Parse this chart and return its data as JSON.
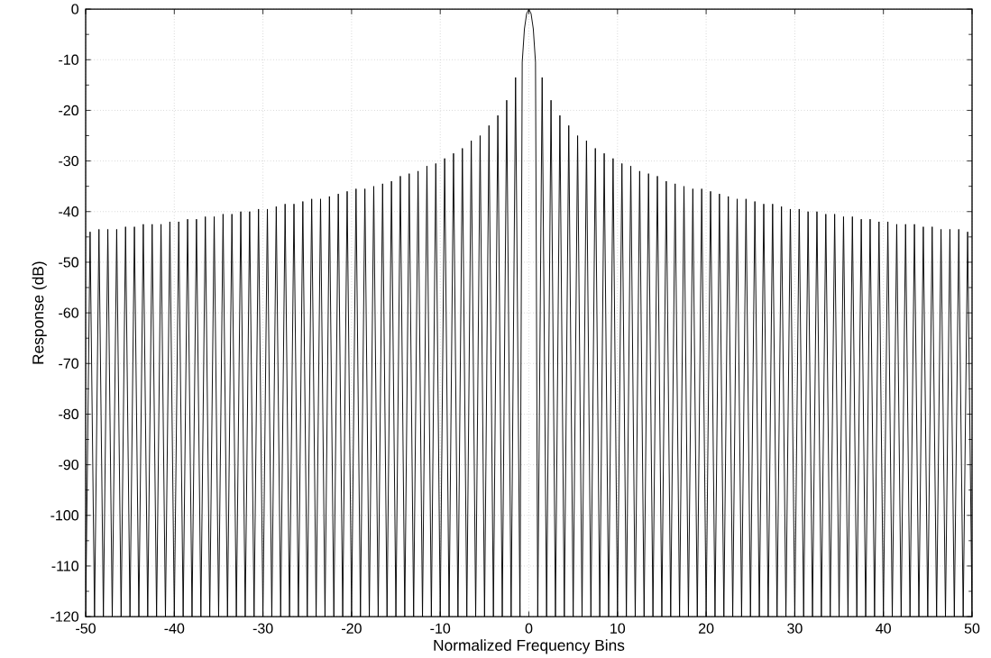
{
  "chart_data": {
    "type": "line",
    "xlabel": "Normalized Frequency Bins",
    "ylabel": "Response (dB)",
    "xlim": [
      -50,
      50
    ],
    "ylim": [
      -120,
      0
    ],
    "xticks": [
      -50,
      -40,
      -30,
      -20,
      -10,
      0,
      10,
      20,
      30,
      40,
      50
    ],
    "yticks": [
      -120,
      -110,
      -100,
      -90,
      -80,
      -70,
      -60,
      -50,
      -40,
      -30,
      -20,
      -10,
      0
    ],
    "grid": true,
    "marker": "none",
    "line_style": "solid",
    "series": [
      {
        "color": "#000000",
        "x": [
          -50,
          -49.5,
          -49,
          -48.5,
          -48,
          -47.5,
          -47,
          -46.5,
          -46,
          -45.5,
          -45,
          -44.5,
          -44,
          -43.5,
          -43,
          -42.5,
          -42,
          -41.5,
          -41,
          -40.5,
          -40,
          -39.5,
          -39,
          -38.5,
          -38,
          -37.5,
          -37,
          -36.5,
          -36,
          -35.5,
          -35,
          -34.5,
          -34,
          -33.5,
          -33,
          -32.5,
          -32,
          -31.5,
          -31,
          -30.5,
          -30,
          -29.5,
          -29,
          -28.5,
          -28,
          -27.5,
          -27,
          -26.5,
          -26,
          -25.5,
          -25,
          -24.5,
          -24,
          -23.5,
          -23,
          -22.5,
          -22,
          -21.5,
          -21,
          -20.5,
          -20,
          -19.5,
          -19,
          -18.5,
          -18,
          -17.5,
          -17,
          -16.5,
          -16,
          -15.5,
          -15,
          -14.5,
          -14,
          -13.5,
          -13,
          -12.5,
          -12,
          -11.5,
          -11,
          -10.5,
          -10,
          -9.5,
          -9,
          -8.5,
          -8,
          -7.5,
          -7,
          -6.5,
          -6,
          -5.5,
          -5,
          -4.5,
          -4,
          -3.5,
          -3,
          -2.5,
          -2,
          -1.5,
          -1,
          -0.75,
          -0.5,
          -0.25,
          0,
          0.25,
          0.5,
          0.75,
          1,
          1.5,
          2,
          2.5,
          3,
          3.5,
          4,
          4.5,
          5,
          5.5,
          6,
          6.5,
          7,
          7.5,
          8,
          8.5,
          9,
          9.5,
          10,
          10.5,
          11,
          11.5,
          12,
          12.5,
          13,
          13.5,
          14,
          14.5,
          15,
          15.5,
          16,
          16.5,
          17,
          17.5,
          18,
          18.5,
          19,
          19.5,
          20,
          20.5,
          21,
          21.5,
          22,
          22.5,
          23,
          23.5,
          24,
          24.5,
          25,
          25.5,
          26,
          26.5,
          27,
          27.5,
          28,
          28.5,
          29,
          29.5,
          30,
          30.5,
          31,
          31.5,
          32,
          32.5,
          33,
          33.5,
          34,
          34.5,
          35,
          35.5,
          36,
          36.5,
          37,
          37.5,
          38,
          38.5,
          39,
          39.5,
          40,
          40.5,
          41,
          41.5,
          42,
          42.5,
          43,
          43.5,
          44,
          44.5,
          45,
          45.5,
          46,
          46.5,
          47,
          47.5,
          48,
          48.5,
          49,
          49.5,
          50
        ],
        "values": [
          -120,
          -44,
          -120,
          -43.5,
          -120,
          -43.5,
          -120,
          -43.5,
          -120,
          -43,
          -120,
          -43,
          -120,
          -42.5,
          -120,
          -42.5,
          -120,
          -42.5,
          -120,
          -42,
          -120,
          -42,
          -120,
          -41.5,
          -120,
          -41.5,
          -120,
          -41,
          -120,
          -41,
          -120,
          -40.5,
          -120,
          -40.5,
          -120,
          -40,
          -120,
          -40,
          -120,
          -39.5,
          -120,
          -39.5,
          -120,
          -39,
          -120,
          -38.5,
          -120,
          -38.5,
          -120,
          -38,
          -120,
          -37.5,
          -120,
          -37.5,
          -120,
          -37,
          -120,
          -36.5,
          -120,
          -36,
          -120,
          -35.5,
          -120,
          -35.5,
          -120,
          -35,
          -120,
          -34.5,
          -120,
          -34,
          -120,
          -33,
          -120,
          -32.5,
          -120,
          -32,
          -120,
          -31,
          -120,
          -30.5,
          -120,
          -29.5,
          -120,
          -28.5,
          -120,
          -27.5,
          -120,
          -26,
          -120,
          -25,
          -120,
          -23,
          -120,
          -21,
          -120,
          -18,
          -120,
          -13.5,
          -120,
          -10.5,
          -3.9,
          -0.9,
          0,
          -0.9,
          -3.9,
          -10.5,
          -120,
          -13.5,
          -120,
          -18,
          -120,
          -21,
          -120,
          -23,
          -120,
          -25,
          -120,
          -26,
          -120,
          -27.5,
          -120,
          -28.5,
          -120,
          -29.5,
          -120,
          -30.5,
          -120,
          -31,
          -120,
          -32,
          -120,
          -32.5,
          -120,
          -33,
          -120,
          -34,
          -120,
          -34.5,
          -120,
          -35,
          -120,
          -35.5,
          -120,
          -35.5,
          -120,
          -36,
          -120,
          -36.5,
          -120,
          -37,
          -120,
          -37.5,
          -120,
          -37.5,
          -120,
          -38,
          -120,
          -38.5,
          -120,
          -38.5,
          -120,
          -39,
          -120,
          -39.5,
          -120,
          -39.5,
          -120,
          -40,
          -120,
          -40,
          -120,
          -40.5,
          -120,
          -40.5,
          -120,
          -41,
          -120,
          -41,
          -120,
          -41.5,
          -120,
          -41.5,
          -120,
          -42,
          -120,
          -42,
          -120,
          -42.5,
          -120,
          -42.5,
          -120,
          -42.5,
          -120,
          -43,
          -120,
          -43,
          -120,
          -43.5,
          -120,
          -43.5,
          -120,
          -43.5,
          -120,
          -44,
          -120
        ]
      }
    ]
  }
}
